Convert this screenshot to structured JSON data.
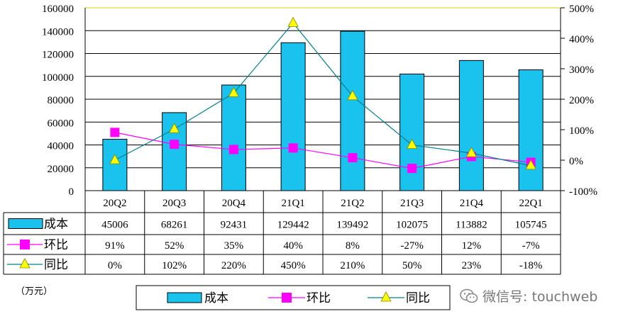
{
  "chart_data": {
    "type": "bar",
    "categories": [
      "20Q2",
      "20Q3",
      "20Q4",
      "21Q1",
      "21Q2",
      "21Q3",
      "21Q4",
      "22Q1"
    ],
    "series": [
      {
        "name": "成本",
        "type": "bar",
        "axis": "left",
        "color": "#19c3ee",
        "values": [
          45006,
          68261,
          92431,
          129442,
          139492,
          102075,
          113882,
          105745
        ],
        "labels": [
          "45006",
          "68261",
          "92431",
          "129442",
          "139492",
          "102075",
          "113882",
          "105745"
        ]
      },
      {
        "name": "环比",
        "type": "line",
        "axis": "right",
        "color": "#ff00ff",
        "marker": "square",
        "values": [
          91,
          52,
          35,
          40,
          8,
          -27,
          12,
          -7
        ],
        "labels": [
          "91%",
          "52%",
          "35%",
          "40%",
          "8%",
          "-27%",
          "12%",
          "-7%"
        ]
      },
      {
        "name": "同比",
        "type": "line",
        "axis": "right",
        "color": "#00808c",
        "marker": "triangle",
        "marker_color": "#ffff00",
        "values": [
          0,
          102,
          220,
          450,
          210,
          50,
          23,
          -18
        ],
        "labels": [
          "0%",
          "102%",
          "220%",
          "450%",
          "210%",
          "50%",
          "23%",
          "-18%"
        ]
      }
    ],
    "y_left": {
      "min": 0,
      "max": 160000,
      "ticks": [
        "0",
        "20000",
        "40000",
        "60000",
        "80000",
        "100000",
        "120000",
        "140000",
        "160000"
      ]
    },
    "y_right": {
      "min": -100,
      "max": 500,
      "ticks": [
        "-100%",
        "0%",
        "100%",
        "200%",
        "300%",
        "400%",
        "500%"
      ]
    },
    "grid": true,
    "legend": "bottom",
    "data_table": true
  },
  "unit_label": "（万元）",
  "watermark": {
    "text": "微信号: touchweb",
    "icon": "wechat-icon"
  }
}
